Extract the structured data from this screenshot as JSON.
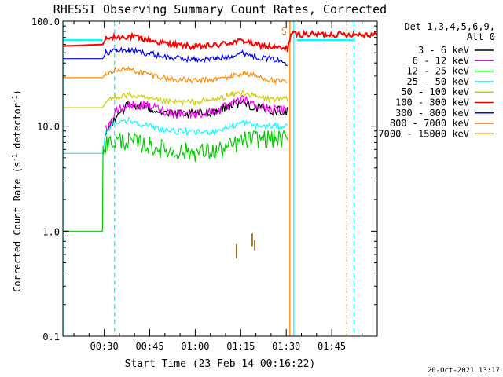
{
  "footer": {
    "date": "20-Oct-2021 13:17"
  },
  "chart_data": {
    "type": "line",
    "title": "RHESSI Observing Summary Count Rates, Corrected",
    "xlabel": "Start Time (23-Feb-14 00:16:22)",
    "ylabel_main": "Corrected Count Rate (s",
    "ylabel_sup": "-1",
    "ylabel_mid": " detector",
    "ylabel_sup2": "-1",
    "ylabel_end": ")",
    "y_scale": "log",
    "ylim": [
      0.1,
      100
    ],
    "xlim_minutes": [
      16.37,
      120
    ],
    "x_ticks": [
      {
        "label": "00:30",
        "minute": 30
      },
      {
        "label": "00:45",
        "minute": 45
      },
      {
        "label": "01:00",
        "minute": 60
      },
      {
        "label": "01:15",
        "minute": 75
      },
      {
        "label": "01:30",
        "minute": 90
      },
      {
        "label": "01:45",
        "minute": 105
      }
    ],
    "y_ticks": [
      {
        "label": "100.0",
        "value": 100
      },
      {
        "label": "10.0",
        "value": 10
      },
      {
        "label": "1.0",
        "value": 1
      },
      {
        "label": "0.1",
        "value": 0.1
      }
    ],
    "legend": {
      "header_1": "Det 1,3,4,5,6,9,",
      "header_2": "Att 0",
      "entries": [
        {
          "name": "3 - 6 keV",
          "color": "#000000"
        },
        {
          "name": "6 - 12 keV",
          "color": "#ff00ff"
        },
        {
          "name": "12 - 25 keV",
          "color": "#00cc00"
        },
        {
          "name": "25 - 50 keV",
          "color": "#00ffff"
        },
        {
          "name": "50 - 100 keV",
          "color": "#cccc00"
        },
        {
          "name": "100 - 300 keV",
          "color": "#ff0000"
        },
        {
          "name": "300 - 800 keV",
          "color": "#0000ff"
        },
        {
          "name": "800 - 7000 keV",
          "color": "#ff8800"
        },
        {
          "name": "7000 - 15000 keV",
          "color": "#886600"
        }
      ]
    },
    "annotation": {
      "text": "S",
      "color": "#ff8800",
      "minute": 89.3
    },
    "series": [
      {
        "name": "100 - 300 keV",
        "color": "#ff0000",
        "x": [
          16.4,
          29.5,
          30.5,
          34,
          38,
          45,
          52,
          60,
          67,
          72,
          76,
          80,
          86,
          90.4,
          91.5,
          120
        ],
        "y": [
          58,
          60,
          68,
          70,
          72,
          66,
          60,
          57,
          59,
          63,
          65,
          60,
          56,
          54,
          75,
          75
        ]
      },
      {
        "name": "300 - 800 keV",
        "color": "#0000ff",
        "x": [
          16.4,
          29.5,
          30.5,
          34,
          38,
          45,
          52,
          60,
          67,
          72,
          76,
          80,
          86,
          90.4
        ],
        "y": [
          44,
          44,
          50,
          53,
          53,
          49,
          45,
          43,
          44,
          47,
          50,
          46,
          43,
          40
        ]
      },
      {
        "name": "800 - 7000 keV",
        "color": "#ff8800",
        "x": [
          16.4,
          29.5,
          30.5,
          34,
          38,
          45,
          52,
          60,
          67,
          72,
          76,
          80,
          86,
          90.4
        ],
        "y": [
          29,
          29,
          32,
          35,
          35,
          31,
          28,
          27,
          28,
          30,
          32,
          30,
          27,
          26
        ]
      },
      {
        "name": "50 - 100 keV",
        "color": "#cccc00",
        "x": [
          16.4,
          29.5,
          30.5,
          34,
          38,
          45,
          52,
          60,
          67,
          72,
          76,
          80,
          86,
          90.4
        ],
        "y": [
          15,
          15,
          17,
          19,
          20,
          18,
          17,
          17,
          18,
          20,
          21,
          19,
          18,
          18
        ]
      },
      {
        "name": "3 - 6 keV",
        "color": "#000000",
        "x": [
          30.5,
          32,
          34,
          38,
          45,
          52,
          60,
          67,
          72,
          76,
          80,
          86,
          90.4
        ],
        "y": [
          8.5,
          10,
          13,
          16,
          15,
          13,
          13,
          14,
          16,
          17,
          15,
          14,
          14
        ]
      },
      {
        "name": "6 - 12 keV",
        "color": "#ff00ff",
        "x": [
          30.5,
          32,
          34,
          38,
          45,
          52,
          60,
          67,
          72,
          76,
          80,
          86,
          90.4
        ],
        "y": [
          9.5,
          11,
          14,
          16,
          15.5,
          13.5,
          13,
          14,
          16,
          18,
          15.5,
          14.5,
          14
        ]
      },
      {
        "name": "25 - 50 keV",
        "color": "#00ffff",
        "x": [
          16.4,
          29.5,
          30.5,
          34,
          38,
          45,
          52,
          60,
          67,
          72,
          76,
          80,
          86,
          90.4
        ],
        "y": [
          5.5,
          5.5,
          9,
          11,
          11.5,
          10,
          9,
          8.7,
          9,
          10,
          11,
          10,
          10,
          10
        ]
      },
      {
        "name": "12 - 25 keV",
        "color": "#00cc00",
        "x": [
          16.4,
          29.4,
          29.6,
          34,
          38,
          45,
          52,
          60,
          67,
          72,
          76,
          80,
          86,
          90.4
        ],
        "y": [
          1,
          1,
          6.5,
          7.3,
          7.2,
          6.5,
          5.8,
          5.6,
          5.8,
          6.4,
          7.3,
          7.6,
          7.6,
          7.4
        ]
      },
      {
        "name": "7000 - 15000 keV",
        "color": "#886600",
        "x": [
          73.5,
          79.5
        ],
        "y": [
          0.65,
          0.85
        ]
      }
    ],
    "vertical_markers": [
      {
        "minute": 16.4,
        "color": "#00ffff",
        "style": "solid"
      },
      {
        "minute": 33.4,
        "color": "#00ffff",
        "style": "dashed"
      },
      {
        "minute": 91.2,
        "color": "#ff8800",
        "style": "solid"
      },
      {
        "minute": 92.5,
        "color": "#00ffff",
        "style": "solid"
      },
      {
        "minute": 110.0,
        "color": "#ff8800",
        "style": "dashed"
      },
      {
        "minute": 112.3,
        "color": "#00ffff",
        "style": "dashed"
      }
    ],
    "segments": [
      {
        "color": "#00ffff",
        "x": [
          16.4,
          29.5
        ],
        "y": [
          66,
          66
        ]
      },
      {
        "color": "#00ffff",
        "x": [
          93.5,
          112.3
        ],
        "y": [
          66,
          66
        ]
      }
    ]
  }
}
